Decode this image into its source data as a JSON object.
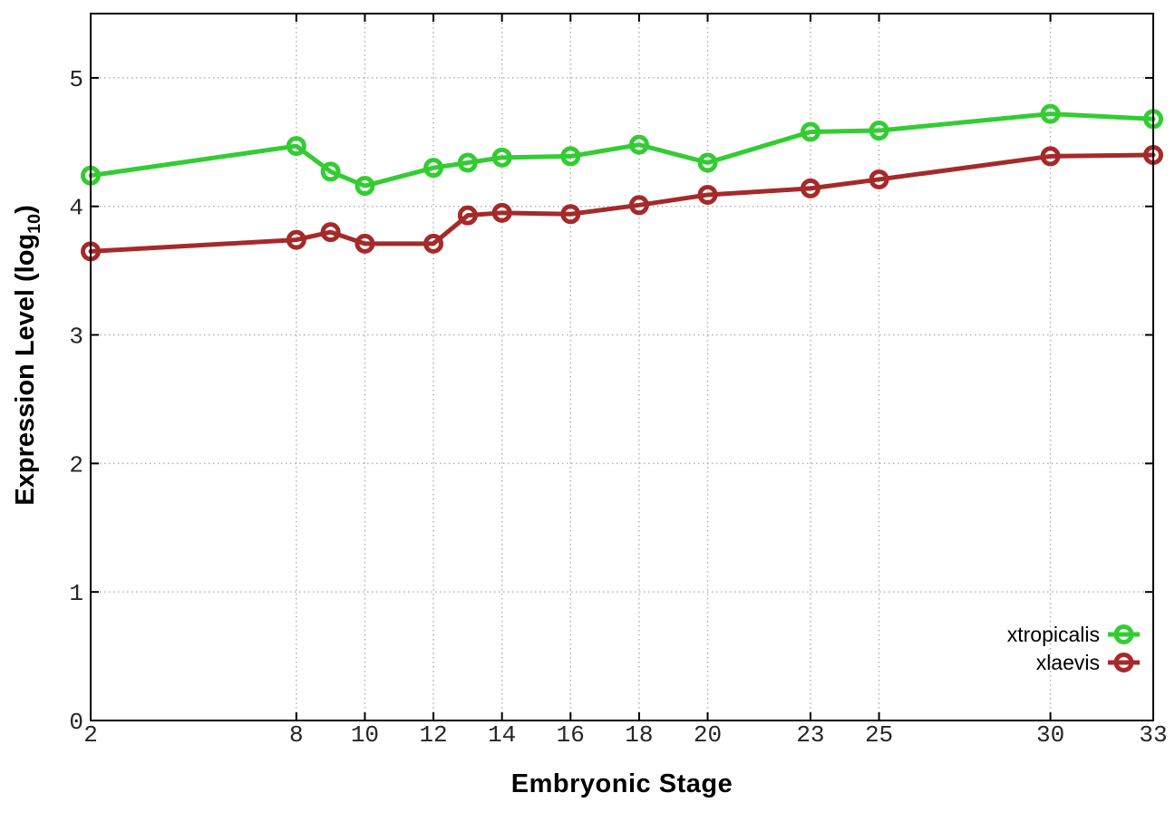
{
  "figure": {
    "background": "#ffffff",
    "ylabel_parts": {
      "main": "Expression Level (log",
      "sub": "10",
      "close": ")"
    }
  },
  "chart_data": {
    "type": "line",
    "title": "",
    "xlabel": "Embryonic Stage",
    "ylabel": "Expression Level (log10)",
    "xlim": [
      2,
      33
    ],
    "ylim": [
      0,
      5.5
    ],
    "grid": true,
    "grid_style": "dotted",
    "legend_position": "inside-bottom-right",
    "x": [
      2,
      8,
      9,
      10,
      12,
      13,
      14,
      16,
      18,
      20,
      23,
      25,
      30,
      33
    ],
    "x_ticks": [
      2,
      8,
      10,
      12,
      14,
      16,
      18,
      20,
      23,
      25,
      30,
      33
    ],
    "x_tick_labels": [
      "2",
      "8",
      "10",
      "12",
      "14",
      "16",
      "18",
      "20",
      "23",
      "25",
      "30",
      "33"
    ],
    "y_ticks": [
      0,
      1,
      2,
      3,
      4,
      5
    ],
    "y_tick_labels": [
      "0",
      "1",
      "2",
      "3",
      "4",
      "5"
    ],
    "series": [
      {
        "name": "xtropicalis",
        "color": "#33cc33",
        "marker": "open-circle",
        "line_width": 5,
        "values": [
          4.24,
          4.47,
          4.27,
          4.16,
          4.3,
          4.34,
          4.38,
          4.39,
          4.48,
          4.34,
          4.58,
          4.59,
          4.72,
          4.68
        ]
      },
      {
        "name": "xlaevis",
        "color": "#a52a2a",
        "marker": "open-circle",
        "line_width": 5,
        "values": [
          3.65,
          3.74,
          3.8,
          3.71,
          3.71,
          3.93,
          3.95,
          3.94,
          4.01,
          4.09,
          4.14,
          4.21,
          4.39,
          4.4
        ]
      }
    ],
    "axis_color": "#000000",
    "grid_color": "#b3b3b3",
    "tick_label_color": "#262626"
  }
}
